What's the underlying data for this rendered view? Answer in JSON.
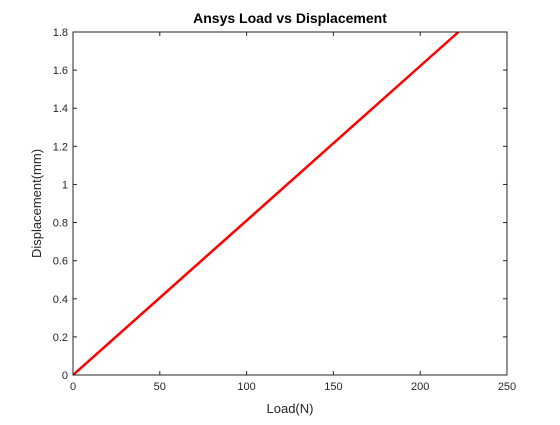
{
  "chart_data": {
    "type": "line",
    "title": "Ansys Load vs Displacement",
    "xlabel": "Load(N)",
    "ylabel": "Displacement(mm)",
    "xlim": [
      0,
      250
    ],
    "ylim": [
      0,
      1.8
    ],
    "x_ticks": [
      "0",
      "50",
      "100",
      "150",
      "200",
      "250"
    ],
    "y_ticks": [
      "0",
      "0.2",
      "0.4",
      "0.6",
      "0.8",
      "1",
      "1.2",
      "1.4",
      "1.6",
      "1.8"
    ],
    "grid": false,
    "series": [
      {
        "color": "#ff0000",
        "x": [
          0,
          222
        ],
        "y": [
          0,
          1.8
        ]
      }
    ]
  }
}
